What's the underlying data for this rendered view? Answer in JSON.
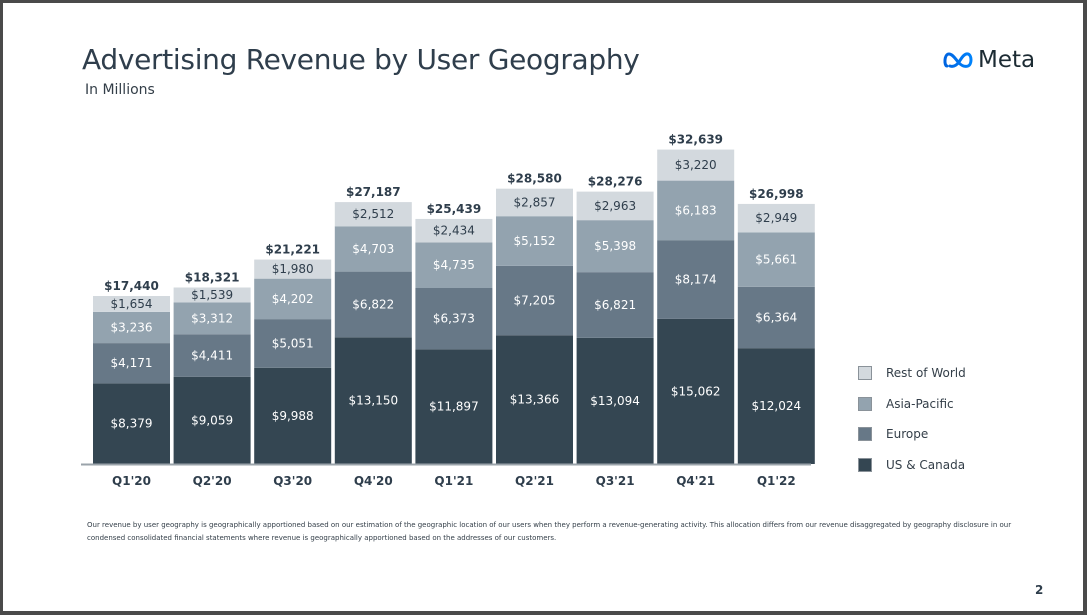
{
  "slide": {
    "title": "Advertising Revenue by User Geography",
    "subtitle": "In Millions",
    "logo_text": "Meta",
    "logo_icon": "meta-infinity-icon",
    "footnote": "Our revenue by user geography is geographically apportioned based on our estimation of the geographic location of our users when they perform a revenue-generating activity. This allocation differs from our revenue disaggregated by geography disclosure in our condensed consolidated financial statements where revenue is geographically apportioned based on the addresses of our customers.",
    "page_number": "2"
  },
  "colors": {
    "us_canada": "#344652",
    "europe": "#677887",
    "asia_pacific": "#93a3af",
    "rest_of_world": "#d3d9de",
    "label_dark": "#2f3e4c",
    "label_light": "#ffffff"
  },
  "chart_data": {
    "type": "bar",
    "stacked": true,
    "title": "Advertising Revenue by User Geography",
    "subtitle": "In Millions",
    "xlabel": "",
    "ylabel": "",
    "units": "USD millions",
    "ylim": [
      0,
      34000
    ],
    "grid": false,
    "legend_position": "right",
    "categories": [
      "Q1'20",
      "Q2'20",
      "Q3'20",
      "Q4'20",
      "Q1'21",
      "Q2'21",
      "Q3'21",
      "Q4'21",
      "Q1'22"
    ],
    "series": [
      {
        "name": "US & Canada",
        "key": "us_canada",
        "values": [
          8379,
          9059,
          9988,
          13150,
          11897,
          13366,
          13094,
          15062,
          12024
        ]
      },
      {
        "name": "Europe",
        "key": "europe",
        "values": [
          4171,
          4411,
          5051,
          6822,
          6373,
          7205,
          6821,
          8174,
          6364
        ]
      },
      {
        "name": "Asia-Pacific",
        "key": "asia_pacific",
        "values": [
          3236,
          3312,
          4202,
          4703,
          4735,
          5152,
          5398,
          6183,
          5661
        ]
      },
      {
        "name": "Rest of World",
        "key": "rest_of_world",
        "values": [
          1654,
          1539,
          1980,
          2512,
          2434,
          2857,
          2963,
          3220,
          2949
        ]
      }
    ],
    "totals": [
      17440,
      18321,
      21221,
      27187,
      25439,
      28580,
      28276,
      32639,
      26998
    ],
    "legend": [
      "Rest of World",
      "Asia-Pacific",
      "Europe",
      "US & Canada"
    ]
  }
}
